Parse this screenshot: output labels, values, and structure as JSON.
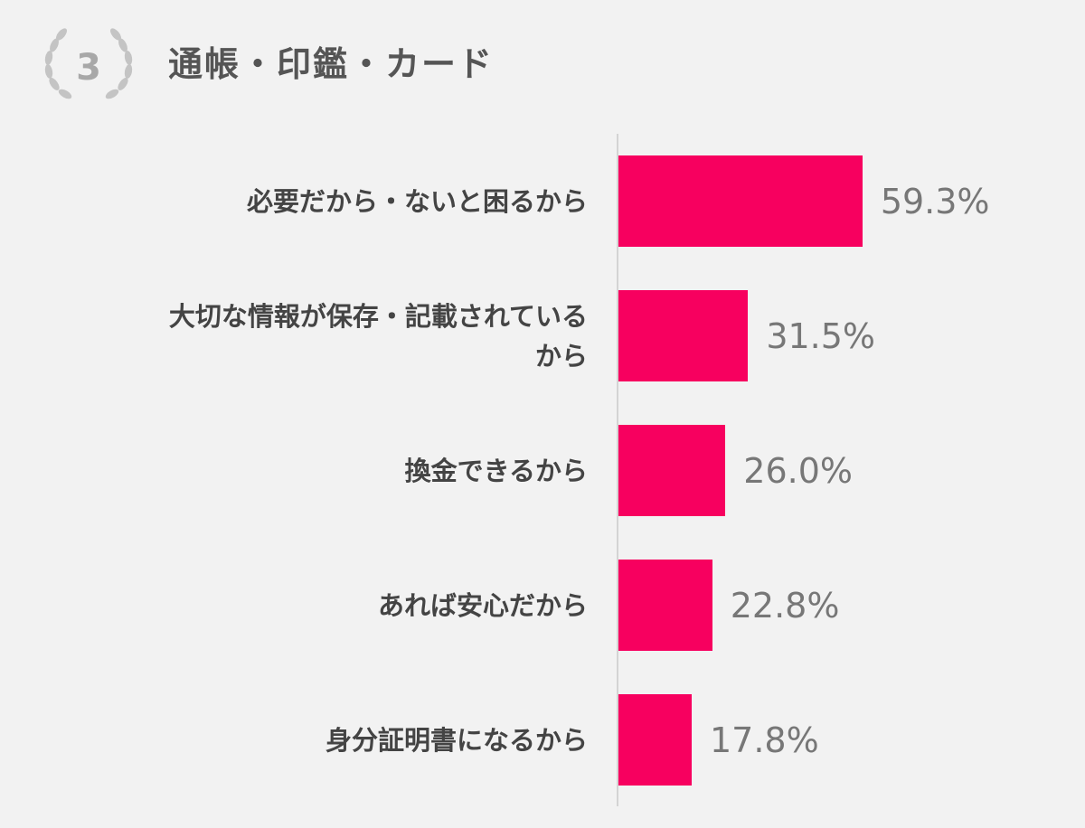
{
  "badge": {
    "rank": "3",
    "icon": "laurel-wreath-icon",
    "color": "#b3b3b3"
  },
  "chart_data": {
    "type": "bar",
    "orientation": "horizontal",
    "title": "通帳・印鑑・カード",
    "categories": [
      "必要だから・ないと困るから",
      "大切な情報が保存・記載されている\nから",
      "換金できるから",
      "あれば安心だから",
      "身分証明書になるから"
    ],
    "values": [
      59.3,
      31.5,
      26.0,
      22.8,
      17.8
    ],
    "value_labels": [
      "59.3%",
      "31.5%",
      "26.0%",
      "22.8%",
      "17.8%"
    ],
    "unit": "%",
    "bar_color": "#f7005f",
    "grid": false
  }
}
